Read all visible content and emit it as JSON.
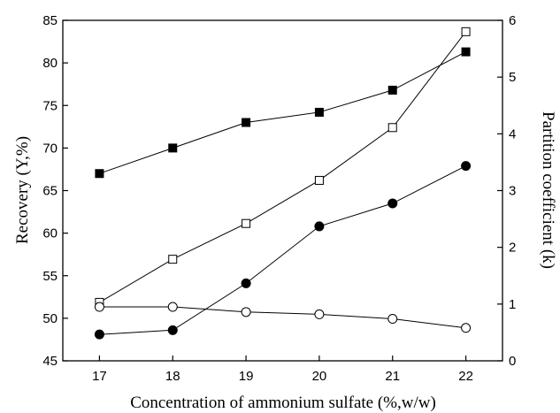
{
  "chart_data": {
    "type": "line",
    "title": "",
    "xlabel": "Concentration of ammonium sulfate (%,w/w)",
    "ylabel_left": "Recovery (Y,%)",
    "ylabel_right": "Partition coefficient (k)",
    "x": [
      17,
      18,
      19,
      20,
      21,
      22
    ],
    "xlim": [
      16.5,
      22.5
    ],
    "xticks": [
      "17",
      "18",
      "19",
      "20",
      "21",
      "22"
    ],
    "ylim_left": [
      45,
      85
    ],
    "yticks_left": [
      "45",
      "50",
      "55",
      "60",
      "65",
      "70",
      "75",
      "80",
      "85"
    ],
    "ylim_right": [
      0,
      6
    ],
    "yticks_right": [
      "0",
      "1",
      "2",
      "3",
      "4",
      "5",
      "6"
    ],
    "grid": false,
    "legend": "none",
    "series": [
      {
        "axis": "left",
        "marker": "square-filled",
        "color": "#000000",
        "values": [
          67.0,
          70.0,
          73.0,
          74.2,
          76.8,
          81.3
        ]
      },
      {
        "axis": "left",
        "marker": "circle-filled",
        "color": "#000000",
        "values": [
          48.1,
          48.6,
          54.1,
          60.8,
          63.5,
          67.9
        ]
      },
      {
        "axis": "right",
        "marker": "square-open",
        "color": "#000000",
        "values": [
          1.03,
          1.79,
          2.42,
          3.18,
          4.11,
          5.8
        ]
      },
      {
        "axis": "right",
        "marker": "circle-open",
        "color": "#000000",
        "values": [
          0.95,
          0.95,
          0.86,
          0.82,
          0.74,
          0.58
        ]
      }
    ]
  }
}
